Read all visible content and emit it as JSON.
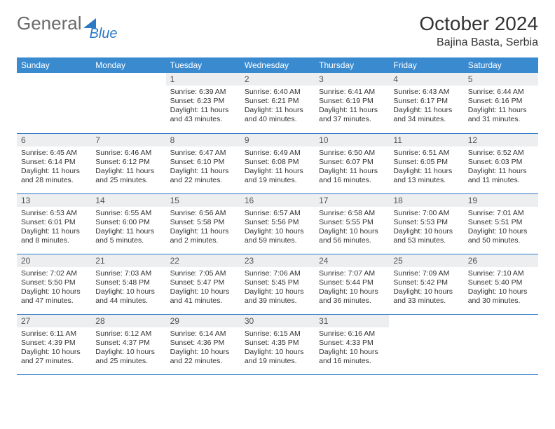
{
  "brand": {
    "word1": "General",
    "word2": "Blue"
  },
  "title": "October 2024",
  "location": "Bajina Basta, Serbia",
  "colors": {
    "header_bg": "#3a8ad0",
    "rule": "#2d79c6",
    "daynum_bg": "#eceef0",
    "text": "#333333",
    "page_bg": "#ffffff"
  },
  "weekdays": [
    "Sunday",
    "Monday",
    "Tuesday",
    "Wednesday",
    "Thursday",
    "Friday",
    "Saturday"
  ],
  "weeks": [
    [
      null,
      null,
      {
        "n": "1",
        "sr": "Sunrise: 6:39 AM",
        "ss": "Sunset: 6:23 PM",
        "dl1": "Daylight: 11 hours",
        "dl2": "and 43 minutes."
      },
      {
        "n": "2",
        "sr": "Sunrise: 6:40 AM",
        "ss": "Sunset: 6:21 PM",
        "dl1": "Daylight: 11 hours",
        "dl2": "and 40 minutes."
      },
      {
        "n": "3",
        "sr": "Sunrise: 6:41 AM",
        "ss": "Sunset: 6:19 PM",
        "dl1": "Daylight: 11 hours",
        "dl2": "and 37 minutes."
      },
      {
        "n": "4",
        "sr": "Sunrise: 6:43 AM",
        "ss": "Sunset: 6:17 PM",
        "dl1": "Daylight: 11 hours",
        "dl2": "and 34 minutes."
      },
      {
        "n": "5",
        "sr": "Sunrise: 6:44 AM",
        "ss": "Sunset: 6:16 PM",
        "dl1": "Daylight: 11 hours",
        "dl2": "and 31 minutes."
      }
    ],
    [
      {
        "n": "6",
        "sr": "Sunrise: 6:45 AM",
        "ss": "Sunset: 6:14 PM",
        "dl1": "Daylight: 11 hours",
        "dl2": "and 28 minutes."
      },
      {
        "n": "7",
        "sr": "Sunrise: 6:46 AM",
        "ss": "Sunset: 6:12 PM",
        "dl1": "Daylight: 11 hours",
        "dl2": "and 25 minutes."
      },
      {
        "n": "8",
        "sr": "Sunrise: 6:47 AM",
        "ss": "Sunset: 6:10 PM",
        "dl1": "Daylight: 11 hours",
        "dl2": "and 22 minutes."
      },
      {
        "n": "9",
        "sr": "Sunrise: 6:49 AM",
        "ss": "Sunset: 6:08 PM",
        "dl1": "Daylight: 11 hours",
        "dl2": "and 19 minutes."
      },
      {
        "n": "10",
        "sr": "Sunrise: 6:50 AM",
        "ss": "Sunset: 6:07 PM",
        "dl1": "Daylight: 11 hours",
        "dl2": "and 16 minutes."
      },
      {
        "n": "11",
        "sr": "Sunrise: 6:51 AM",
        "ss": "Sunset: 6:05 PM",
        "dl1": "Daylight: 11 hours",
        "dl2": "and 13 minutes."
      },
      {
        "n": "12",
        "sr": "Sunrise: 6:52 AM",
        "ss": "Sunset: 6:03 PM",
        "dl1": "Daylight: 11 hours",
        "dl2": "and 11 minutes."
      }
    ],
    [
      {
        "n": "13",
        "sr": "Sunrise: 6:53 AM",
        "ss": "Sunset: 6:01 PM",
        "dl1": "Daylight: 11 hours",
        "dl2": "and 8 minutes."
      },
      {
        "n": "14",
        "sr": "Sunrise: 6:55 AM",
        "ss": "Sunset: 6:00 PM",
        "dl1": "Daylight: 11 hours",
        "dl2": "and 5 minutes."
      },
      {
        "n": "15",
        "sr": "Sunrise: 6:56 AM",
        "ss": "Sunset: 5:58 PM",
        "dl1": "Daylight: 11 hours",
        "dl2": "and 2 minutes."
      },
      {
        "n": "16",
        "sr": "Sunrise: 6:57 AM",
        "ss": "Sunset: 5:56 PM",
        "dl1": "Daylight: 10 hours",
        "dl2": "and 59 minutes."
      },
      {
        "n": "17",
        "sr": "Sunrise: 6:58 AM",
        "ss": "Sunset: 5:55 PM",
        "dl1": "Daylight: 10 hours",
        "dl2": "and 56 minutes."
      },
      {
        "n": "18",
        "sr": "Sunrise: 7:00 AM",
        "ss": "Sunset: 5:53 PM",
        "dl1": "Daylight: 10 hours",
        "dl2": "and 53 minutes."
      },
      {
        "n": "19",
        "sr": "Sunrise: 7:01 AM",
        "ss": "Sunset: 5:51 PM",
        "dl1": "Daylight: 10 hours",
        "dl2": "and 50 minutes."
      }
    ],
    [
      {
        "n": "20",
        "sr": "Sunrise: 7:02 AM",
        "ss": "Sunset: 5:50 PM",
        "dl1": "Daylight: 10 hours",
        "dl2": "and 47 minutes."
      },
      {
        "n": "21",
        "sr": "Sunrise: 7:03 AM",
        "ss": "Sunset: 5:48 PM",
        "dl1": "Daylight: 10 hours",
        "dl2": "and 44 minutes."
      },
      {
        "n": "22",
        "sr": "Sunrise: 7:05 AM",
        "ss": "Sunset: 5:47 PM",
        "dl1": "Daylight: 10 hours",
        "dl2": "and 41 minutes."
      },
      {
        "n": "23",
        "sr": "Sunrise: 7:06 AM",
        "ss": "Sunset: 5:45 PM",
        "dl1": "Daylight: 10 hours",
        "dl2": "and 39 minutes."
      },
      {
        "n": "24",
        "sr": "Sunrise: 7:07 AM",
        "ss": "Sunset: 5:44 PM",
        "dl1": "Daylight: 10 hours",
        "dl2": "and 36 minutes."
      },
      {
        "n": "25",
        "sr": "Sunrise: 7:09 AM",
        "ss": "Sunset: 5:42 PM",
        "dl1": "Daylight: 10 hours",
        "dl2": "and 33 minutes."
      },
      {
        "n": "26",
        "sr": "Sunrise: 7:10 AM",
        "ss": "Sunset: 5:40 PM",
        "dl1": "Daylight: 10 hours",
        "dl2": "and 30 minutes."
      }
    ],
    [
      {
        "n": "27",
        "sr": "Sunrise: 6:11 AM",
        "ss": "Sunset: 4:39 PM",
        "dl1": "Daylight: 10 hours",
        "dl2": "and 27 minutes."
      },
      {
        "n": "28",
        "sr": "Sunrise: 6:12 AM",
        "ss": "Sunset: 4:37 PM",
        "dl1": "Daylight: 10 hours",
        "dl2": "and 25 minutes."
      },
      {
        "n": "29",
        "sr": "Sunrise: 6:14 AM",
        "ss": "Sunset: 4:36 PM",
        "dl1": "Daylight: 10 hours",
        "dl2": "and 22 minutes."
      },
      {
        "n": "30",
        "sr": "Sunrise: 6:15 AM",
        "ss": "Sunset: 4:35 PM",
        "dl1": "Daylight: 10 hours",
        "dl2": "and 19 minutes."
      },
      {
        "n": "31",
        "sr": "Sunrise: 6:16 AM",
        "ss": "Sunset: 4:33 PM",
        "dl1": "Daylight: 10 hours",
        "dl2": "and 16 minutes."
      },
      null,
      null
    ]
  ]
}
